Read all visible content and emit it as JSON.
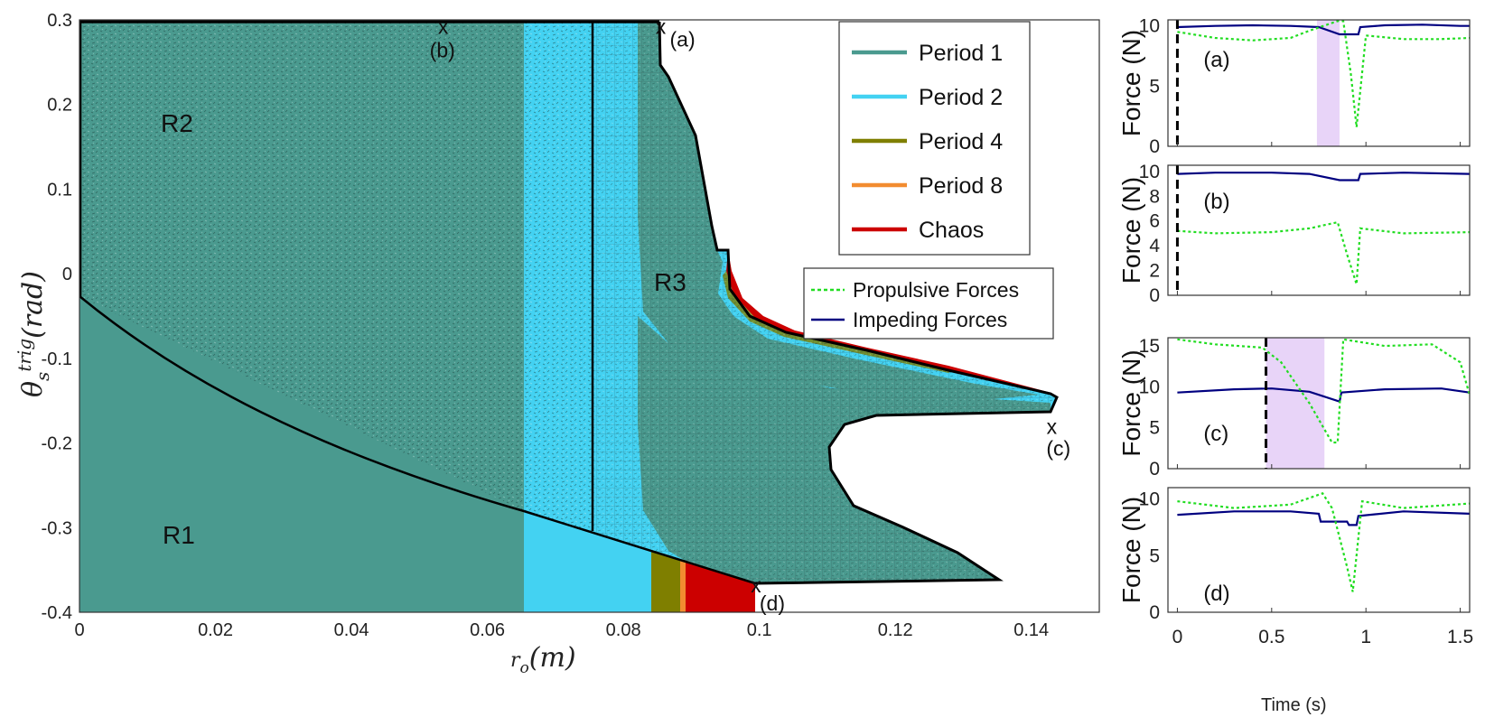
{
  "chart_data": [
    {
      "type": "area",
      "xlabel": "r_o(m)",
      "ylabel": "θ_s^trig(rad)",
      "xlim": [
        0,
        0.15
      ],
      "ylim": [
        -0.4,
        0.3
      ],
      "x_ticks": [
        "0",
        "0.02",
        "0.04",
        "0.06",
        "0.08",
        "0.1",
        "0.12",
        "0.14"
      ],
      "y_ticks": [
        "0.3",
        "0.2",
        "0.1",
        "0",
        "-0.1",
        "-0.2",
        "-0.3",
        "-0.4"
      ],
      "grid": true,
      "legend_position": "top-right",
      "legend": [
        {
          "name": "Period 1",
          "color": "#4A9A8F"
        },
        {
          "name": "Period 2",
          "color": "#43D2F2"
        },
        {
          "name": "Period 4",
          "color": "#7F7F00"
        },
        {
          "name": "Period 8",
          "color": "#F28C30"
        },
        {
          "name": "Chaos",
          "color": "#CC0000"
        }
      ],
      "regions": [
        "R1",
        "R2",
        "R3"
      ],
      "color_bands_bottom": [
        {
          "label": "Period 1",
          "x_range": [
            0,
            0.0655
          ]
        },
        {
          "label": "Period 2",
          "x_range": [
            0.0655,
            0.0843
          ]
        },
        {
          "label": "Period 4",
          "x_range": [
            0.0843,
            0.0885
          ]
        },
        {
          "label": "Period 8",
          "x_range": [
            0.0885,
            0.0893
          ]
        },
        {
          "label": "Chaos",
          "x_range": [
            0.0893,
            0.0995
          ]
        }
      ],
      "R1_upper_boundary": [
        [
          0,
          -0.047
        ],
        [
          0.02,
          -0.14
        ],
        [
          0.04,
          -0.215
        ],
        [
          0.06,
          -0.275
        ],
        [
          0.08,
          -0.318
        ],
        [
          0.1,
          -0.37
        ]
      ],
      "R2_right_boundary_x": 0.0755,
      "R3_outer_boundary": [
        [
          0.0755,
          0.295
        ],
        [
          0.0848,
          0.295
        ],
        [
          0.0852,
          0.23
        ],
        [
          0.0875,
          0.2
        ],
        [
          0.0905,
          0.14
        ],
        [
          0.093,
          0.02
        ],
        [
          0.0955,
          0.0
        ],
        [
          0.0965,
          -0.05
        ],
        [
          0.1,
          -0.08
        ],
        [
          0.11,
          -0.105
        ],
        [
          0.125,
          -0.13
        ],
        [
          0.143,
          -0.17
        ],
        [
          0.1435,
          -0.175
        ],
        [
          0.1425,
          -0.18
        ],
        [
          0.12,
          -0.183
        ],
        [
          0.112,
          -0.2
        ],
        [
          0.11,
          -0.23
        ],
        [
          0.113,
          -0.27
        ],
        [
          0.12,
          -0.31
        ],
        [
          0.135,
          -0.37
        ],
        [
          0.1,
          -0.37
        ]
      ],
      "marked_points": [
        {
          "label": "(a)",
          "x": 0.0855,
          "y": 0.29
        },
        {
          "label": "(b)",
          "x": 0.0535,
          "y": 0.29
        },
        {
          "label": "(c)",
          "x": 0.143,
          "y": -0.183
        },
        {
          "label": "(d)",
          "x": 0.0995,
          "y": -0.37
        }
      ]
    },
    {
      "type": "line",
      "panel_label": "(a)",
      "xlim": [
        0,
        1.55
      ],
      "ylim": [
        0,
        10.5
      ],
      "ylabel": "Force (N)",
      "y_ticks": [
        "10",
        "5",
        "0"
      ],
      "series": [
        {
          "name": "Impeding Forces",
          "style": "solid",
          "color": "#000080",
          "x": [
            0,
            0.2,
            0.4,
            0.6,
            0.75,
            0.86,
            0.96,
            0.97,
            1.1,
            1.3,
            1.5,
            1.55
          ],
          "y": [
            9.9,
            10.0,
            10.05,
            10.0,
            9.9,
            9.3,
            9.3,
            9.9,
            10.05,
            10.1,
            10.0,
            10.0
          ]
        },
        {
          "name": "Propulsive Forces",
          "style": "dotted",
          "color": "#22DD22",
          "x": [
            0,
            0.2,
            0.4,
            0.6,
            0.7,
            0.85,
            0.88,
            0.92,
            0.95,
            1.0,
            1.2,
            1.4,
            1.55
          ],
          "y": [
            9.5,
            9.0,
            8.8,
            9.0,
            9.6,
            10.4,
            10.4,
            6.0,
            1.6,
            9.2,
            8.9,
            8.9,
            9.0
          ]
        }
      ],
      "shaded_x_range": [
        0.74,
        0.86
      ],
      "trigger_time": 0
    },
    {
      "type": "line",
      "panel_label": "(b)",
      "xlim": [
        0,
        1.55
      ],
      "ylim": [
        0,
        10.5
      ],
      "ylabel": "Force (N)",
      "y_ticks": [
        "10",
        "8",
        "6",
        "4",
        "2",
        "0"
      ],
      "series": [
        {
          "name": "Impeding Forces",
          "style": "solid",
          "color": "#000080",
          "x": [
            0,
            0.2,
            0.5,
            0.7,
            0.86,
            0.96,
            0.97,
            1.2,
            1.55
          ],
          "y": [
            9.8,
            9.9,
            9.9,
            9.8,
            9.3,
            9.3,
            9.8,
            9.9,
            9.8
          ]
        },
        {
          "name": "Propulsive Forces",
          "style": "dotted",
          "color": "#22DD22",
          "x": [
            0,
            0.2,
            0.5,
            0.7,
            0.85,
            0.9,
            0.95,
            0.97,
            1.2,
            1.55
          ],
          "y": [
            5.2,
            5.0,
            5.1,
            5.4,
            5.9,
            3.3,
            0.9,
            5.4,
            5.0,
            5.1
          ]
        }
      ],
      "trigger_time": 0
    },
    {
      "type": "line",
      "panel_label": "(c)",
      "xlim": [
        0,
        1.55
      ],
      "ylim": [
        0,
        16
      ],
      "ylabel": "Force (N)",
      "y_ticks": [
        "15",
        "10",
        "5",
        "0"
      ],
      "series": [
        {
          "name": "Impeding Forces",
          "style": "solid",
          "color": "#000080",
          "x": [
            0,
            0.3,
            0.5,
            0.7,
            0.86,
            0.87,
            1.1,
            1.4,
            1.55
          ],
          "y": [
            9.3,
            9.7,
            9.8,
            9.4,
            8.2,
            9.3,
            9.7,
            9.8,
            9.3
          ]
        },
        {
          "name": "Propulsive Forces",
          "style": "dotted",
          "color": "#22DD22",
          "x": [
            0,
            0.2,
            0.45,
            0.55,
            0.7,
            0.82,
            0.85,
            0.88,
            1.1,
            1.35,
            1.5,
            1.55
          ],
          "y": [
            15.8,
            15.2,
            14.8,
            13.0,
            8.0,
            3.2,
            3.2,
            15.8,
            15.0,
            15.2,
            13.0,
            9.0
          ]
        }
      ],
      "shaded_x_range": [
        0.47,
        0.78
      ],
      "trigger_time": 0.47
    },
    {
      "type": "line",
      "panel_label": "(d)",
      "xlim": [
        0,
        1.55
      ],
      "ylim": [
        0,
        11
      ],
      "ylabel": "Force (N)",
      "x_ticks": [
        "0",
        "0.5",
        "1",
        "1.5"
      ],
      "xlabel": "Time (s)",
      "y_ticks": [
        "10",
        "5",
        "0"
      ],
      "series": [
        {
          "name": "Impeding Forces",
          "style": "solid",
          "color": "#000080",
          "x": [
            0,
            0.3,
            0.6,
            0.75,
            0.76,
            0.9,
            0.91,
            0.95,
            0.96,
            1.2,
            1.55
          ],
          "y": [
            8.6,
            8.9,
            8.9,
            8.7,
            8.0,
            8.0,
            7.7,
            7.7,
            8.5,
            8.9,
            8.7
          ]
        },
        {
          "name": "Propulsive Forces",
          "style": "dotted",
          "color": "#22DD22",
          "x": [
            0,
            0.3,
            0.6,
            0.77,
            0.82,
            0.9,
            0.93,
            0.98,
            1.2,
            1.55
          ],
          "y": [
            9.8,
            9.2,
            9.5,
            10.5,
            9.2,
            4.0,
            1.8,
            9.8,
            9.2,
            9.6
          ]
        }
      ]
    }
  ],
  "legend2": {
    "propulsive": "Propulsive Forces",
    "impeding": "Impeding Forces",
    "propulsive_color": "#22DD22",
    "impeding_color": "#000080"
  },
  "colors": {
    "period1": "#4A9A8F",
    "period2": "#43D2F2",
    "period4": "#7F7F00",
    "period8": "#F28C30",
    "chaos": "#CC0000",
    "shade": "#E8D4F8"
  }
}
